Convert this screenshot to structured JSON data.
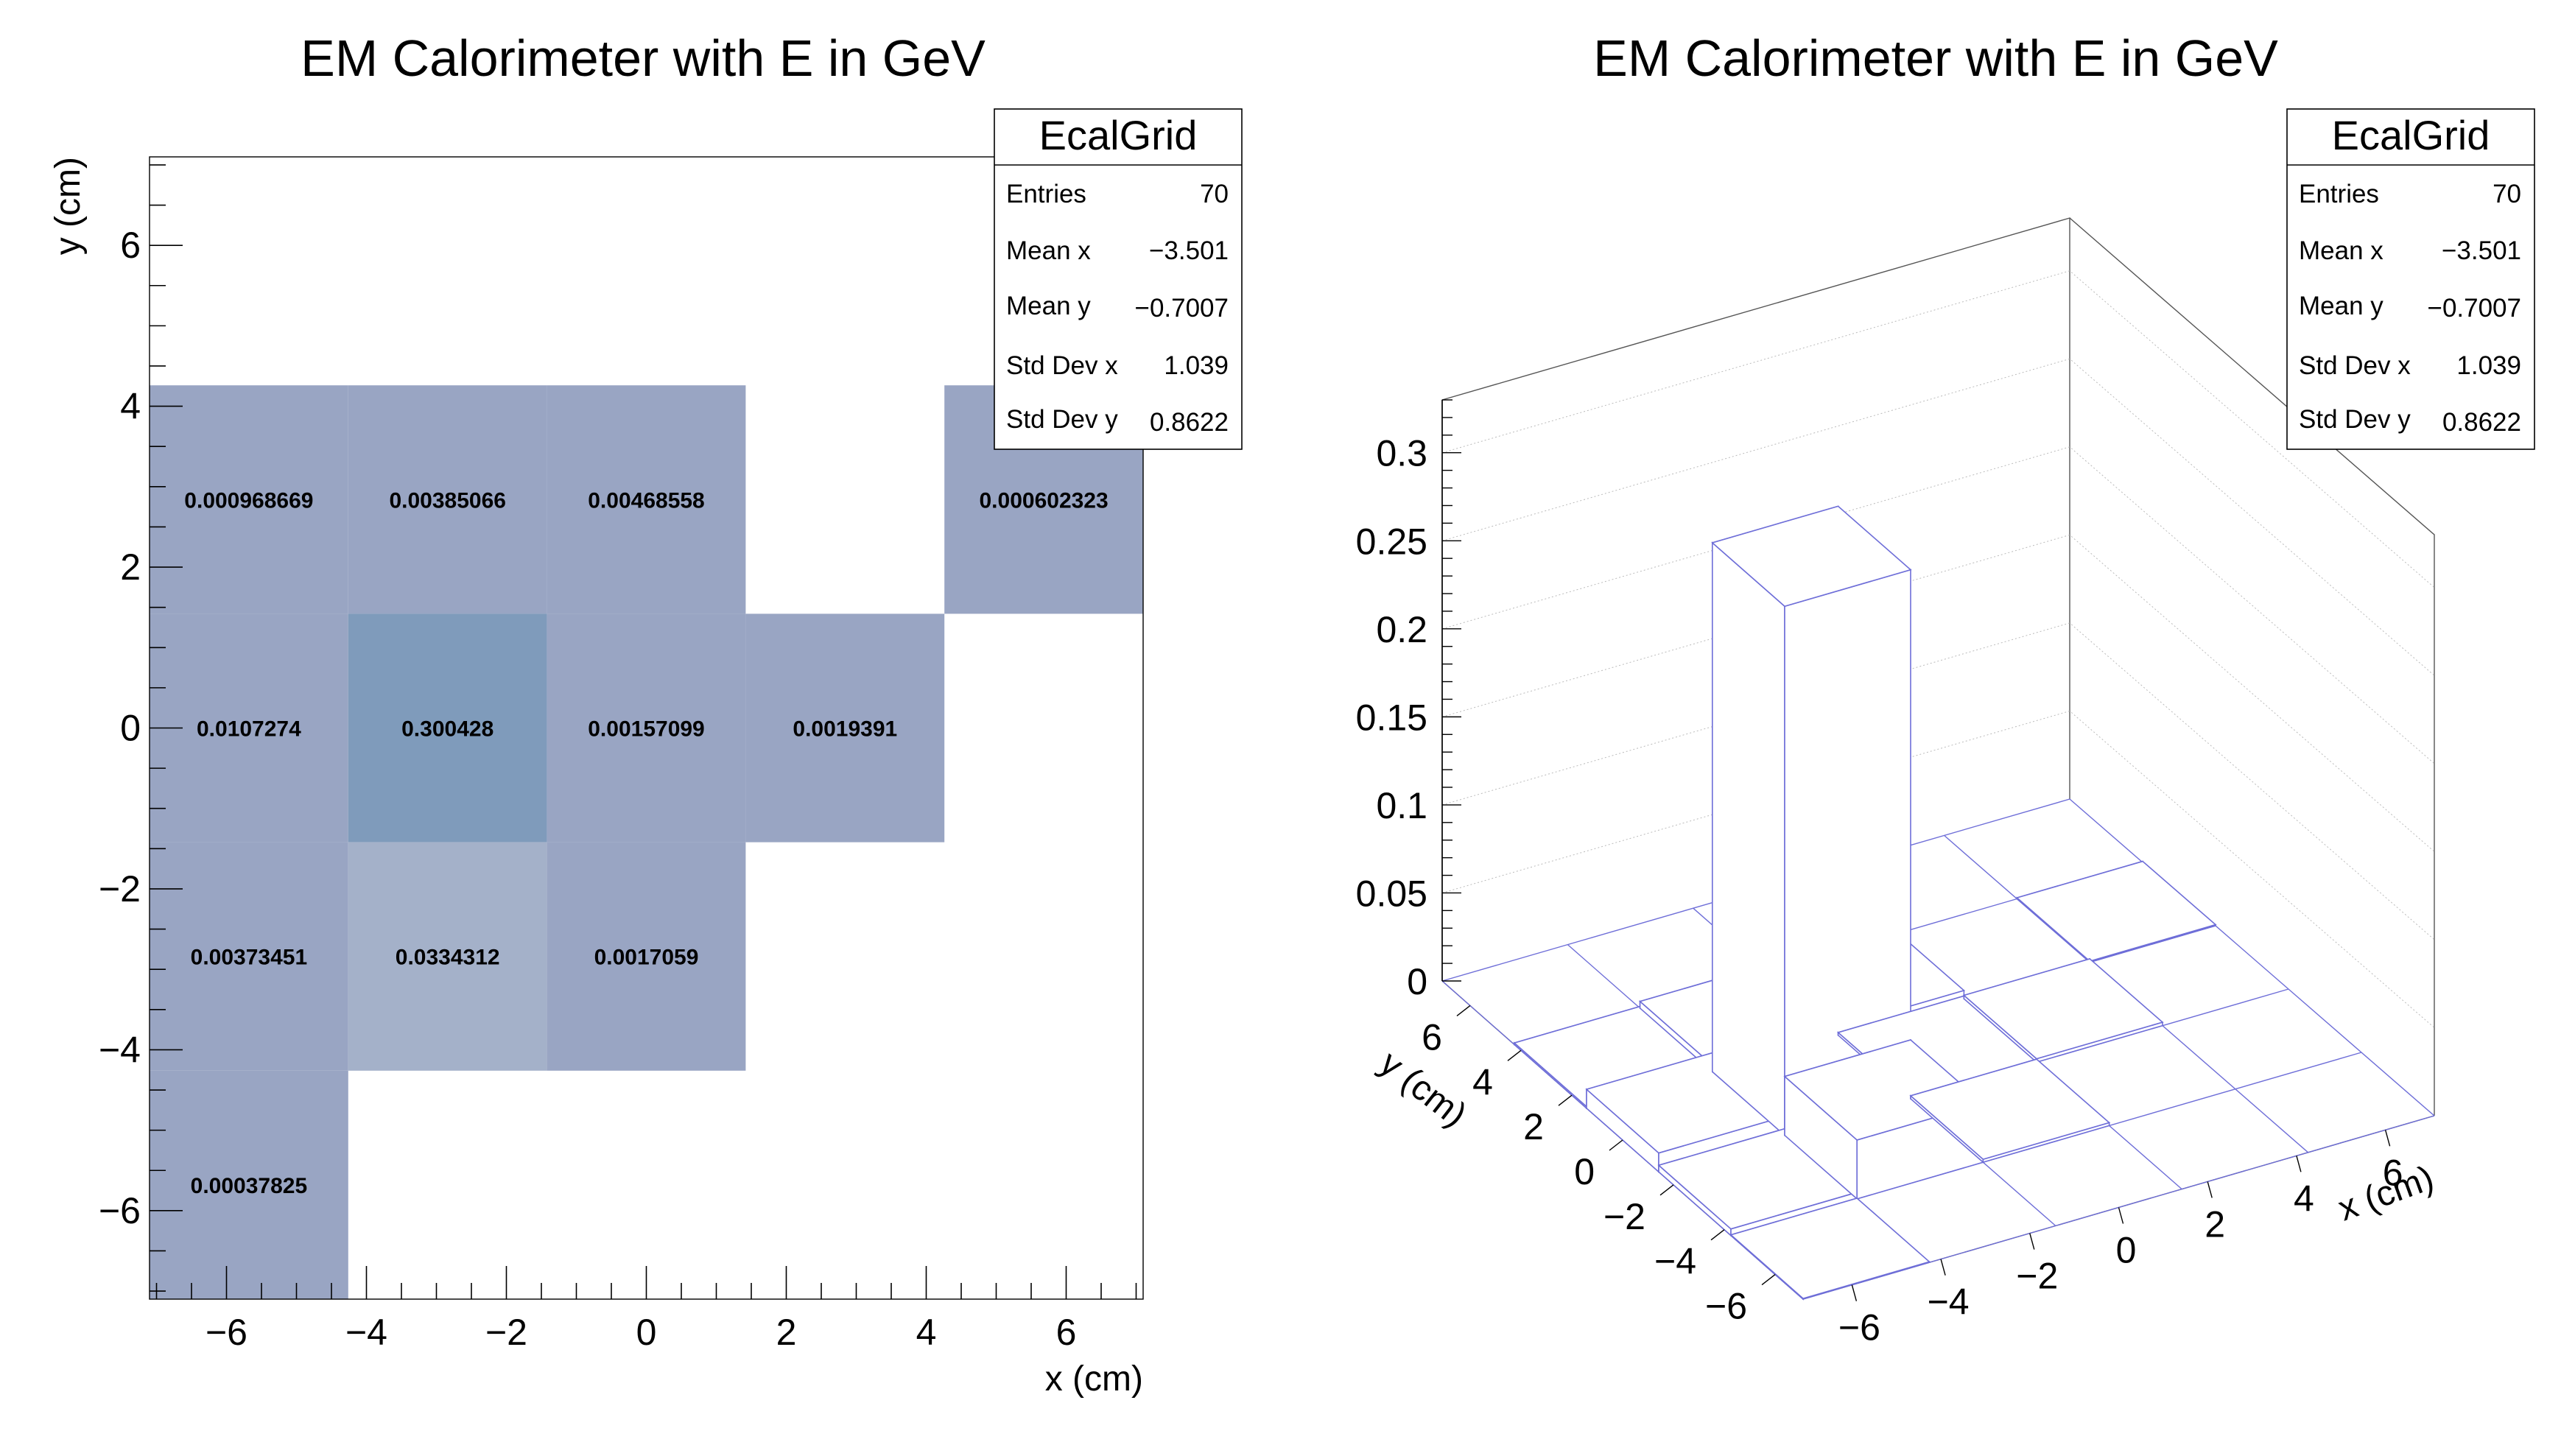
{
  "chart_data": [
    {
      "type": "heatmap",
      "title": "EM Calorimeter with E in GeV",
      "xlabel": "x (cm)",
      "ylabel": "y (cm)",
      "xlim": [
        -7.1,
        7.1
      ],
      "ylim": [
        -7.1,
        7.1
      ],
      "x_edges": [
        -7.1,
        -4.26,
        -1.42,
        1.42,
        4.26,
        7.1
      ],
      "y_edges": [
        -7.1,
        -4.26,
        -1.42,
        1.42,
        4.26,
        7.1
      ],
      "xticks": [
        -6,
        -4,
        -2,
        0,
        2,
        4,
        6
      ],
      "yticks": [
        -6,
        -4,
        -2,
        0,
        2,
        4,
        6
      ],
      "cells": [
        {
          "ix": 0,
          "iy": 3,
          "value": 0.000968669,
          "label": "0.000968669"
        },
        {
          "ix": 1,
          "iy": 3,
          "value": 0.00385066,
          "label": "0.00385066"
        },
        {
          "ix": 2,
          "iy": 3,
          "value": 0.00468558,
          "label": "0.00468558"
        },
        {
          "ix": 4,
          "iy": 3,
          "value": 0.000602323,
          "label": "0.000602323"
        },
        {
          "ix": 0,
          "iy": 2,
          "value": 0.0107274,
          "label": "0.0107274"
        },
        {
          "ix": 1,
          "iy": 2,
          "value": 0.300428,
          "label": "0.300428"
        },
        {
          "ix": 2,
          "iy": 2,
          "value": 0.00157099,
          "label": "0.00157099"
        },
        {
          "ix": 3,
          "iy": 2,
          "value": 0.0019391,
          "label": "0.0019391"
        },
        {
          "ix": 0,
          "iy": 1,
          "value": 0.00373451,
          "label": "0.00373451"
        },
        {
          "ix": 1,
          "iy": 1,
          "value": 0.0334312,
          "label": "0.0334312"
        },
        {
          "ix": 2,
          "iy": 1,
          "value": 0.0017059,
          "label": "0.0017059"
        },
        {
          "ix": 0,
          "iy": 0,
          "value": 0.00037825,
          "label": "0.00037825"
        }
      ],
      "colors": {
        "high": "#7f9bbb",
        "mid": "#a4b1c9",
        "low": "#99a5c3"
      },
      "stats": {
        "name": "EcalGrid",
        "rows": [
          {
            "label": "Entries",
            "value": "70"
          },
          {
            "label": "Mean x",
            "value": "−3.501"
          },
          {
            "label": "Mean y",
            "value": "−0.7007"
          },
          {
            "label": "Std Dev x",
            "value": "1.039"
          },
          {
            "label": "Std Dev y",
            "value": "0.8622"
          }
        ]
      }
    },
    {
      "type": "lego",
      "title": "EM Calorimeter with E in GeV",
      "xlabel": "x (cm)",
      "ylabel": "y (cm)",
      "zlim": [
        0,
        0.33
      ],
      "xticks": [
        -6,
        -4,
        -2,
        0,
        2,
        4,
        6
      ],
      "yticks": [
        -6,
        -4,
        -2,
        0,
        2,
        4,
        6
      ],
      "zticks": [
        {
          "value": 0,
          "label": "0"
        },
        {
          "value": 0.05,
          "label": "0.05"
        },
        {
          "value": 0.1,
          "label": "0.1"
        },
        {
          "value": 0.15,
          "label": "0.15"
        },
        {
          "value": 0.2,
          "label": "0.2"
        },
        {
          "value": 0.25,
          "label": "0.25"
        },
        {
          "value": 0.3,
          "label": "0.3"
        }
      ],
      "line_color": "#6e6ed8",
      "stats": {
        "name": "EcalGrid",
        "rows": [
          {
            "label": "Entries",
            "value": "70"
          },
          {
            "label": "Mean x",
            "value": "−3.501"
          },
          {
            "label": "Mean y",
            "value": "−0.7007"
          },
          {
            "label": "Std Dev x",
            "value": "1.039"
          },
          {
            "label": "Std Dev y",
            "value": "0.8622"
          }
        ]
      }
    }
  ]
}
